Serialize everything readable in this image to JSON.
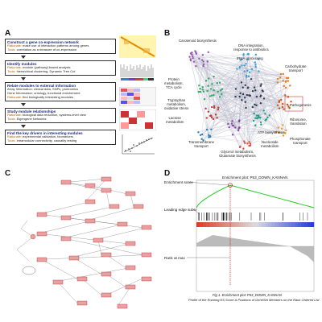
{
  "panel_letters": [
    "A",
    "B",
    "C",
    "D"
  ],
  "panel_a": {
    "steps": [
      {
        "title": "Construct a gene co-expression network",
        "lines": [
          {
            "key": "Rationale:",
            "text": " make use of interaction patterns among genes"
          },
          {
            "key": "Tools:",
            "text": " correlation as a measure of co-expression"
          }
        ]
      },
      {
        "title": "Identify modules",
        "lines": [
          {
            "key": "Rationale:",
            "text": " module (pathway) based analysis"
          },
          {
            "key": "Tools:",
            "text": " hierarchical clustering, Dynamic Tree Cut"
          }
        ]
      },
      {
        "title": "Relate modules to external information",
        "lines": [
          {
            "key": "",
            "text": "Array Information: clinical data, SNPs, proteomics"
          },
          {
            "key": "",
            "text": "Gene Information: ontology, functional enrichement"
          },
          {
            "key": "Rationale:",
            "text": " find biologically interesting modules"
          }
        ]
      },
      {
        "title": "Study module relationships",
        "lines": [
          {
            "key": "Rationale:",
            "text": " biological data reduction, systems-level view"
          },
          {
            "key": "Tools:",
            "text": " Eigengene Networks"
          }
        ]
      },
      {
        "title": "Find the key drivers in interesting modules",
        "lines": [
          {
            "key": "Rationale:",
            "text": " experimental validation, biomarkers"
          },
          {
            "key": "Tools:",
            "text": " intramodular connectivity, causality testing"
          }
        ]
      }
    ]
  },
  "panel_b": {
    "labels": [
      "Carotenoid biosynthesis",
      "DNA integration,\nresponse to antibiotics",
      "tRNA processing",
      "Carbohydrate\ntransport",
      "Protein\nmetabolism,\nTCA cycle",
      "Tryptophan\nmetabolism,\noxidative stress",
      "Pathogenesis",
      "Lactose\nmetabolism",
      "Ribosome,\ntranslation",
      "ATP biosynthesis",
      "Transmembrane\ntransport",
      "Nucleotide\nmetabolism",
      "Phosphonate\ntransport",
      "Glycerol metabolism,\nGlutamate biosynthesis"
    ]
  },
  "panel_d": {
    "plot_title": "Enrichment plot: P53_DOWN_KANNAN",
    "left_labels": [
      "Enrichment score",
      "Leading edge subset",
      "Rank at max"
    ],
    "caption_title": "Fig 1. Enrichment plot: P53_DOWN_KANNAN",
    "caption_text": "Profile of the Running ES Score & Positions of GeneSet Members on the Rank Ordered List"
  },
  "colors": {
    "step_title": "#1a2a7a",
    "key_text": "#b35a00",
    "es_curve": "#22cc22",
    "max_marker": "#cc0000",
    "pathway_box": "#e8a0a0"
  }
}
